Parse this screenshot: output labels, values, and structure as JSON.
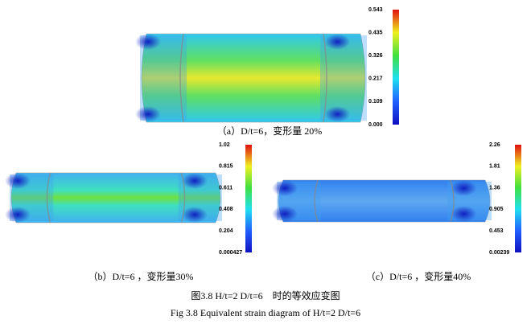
{
  "panels": [
    {
      "colorbar": [
        "0.543",
        "0.435",
        "0.326",
        "0.217",
        "0.109",
        "0.000"
      ],
      "caption": "（a）D/t=6，变形量 20%"
    },
    {
      "colorbar": [
        "1.02",
        "0.815",
        "0.611",
        "0.408",
        "0.204",
        "0.000427"
      ],
      "caption": "（b）D/t=6 ，变形量30%"
    },
    {
      "colorbar": [
        "2.26",
        "1.81",
        "1.36",
        "0.905",
        "0.453",
        "0.00239"
      ],
      "caption": "（c）D/t=6 ，变形量40%"
    }
  ],
  "figure_caption": {
    "zh": "图3.8 H/t=2 D/t=6　时的等效应变图",
    "en": "Fig 3.8 Equivalent strain diagram of H/t=2 D/t=6"
  }
}
